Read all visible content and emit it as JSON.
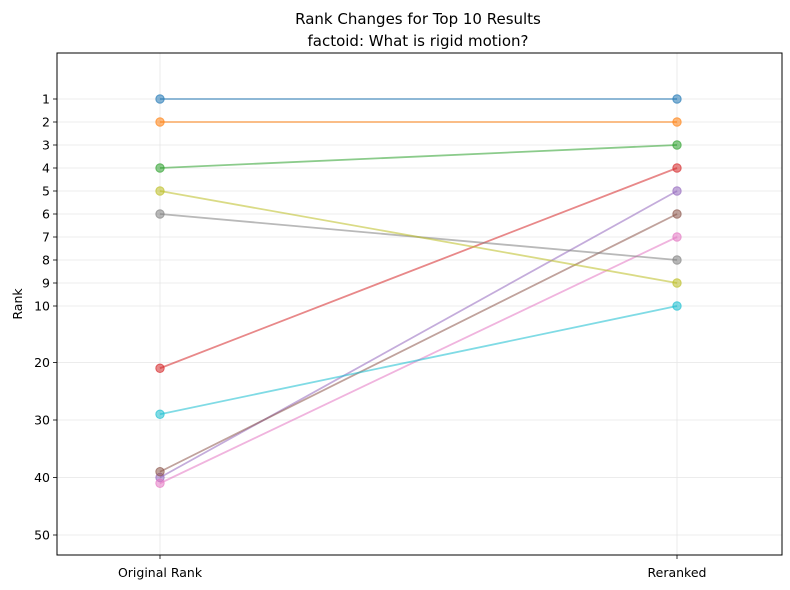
{
  "chart_data": {
    "type": "line",
    "title": "Rank Changes for Top 10 Results",
    "subtitle": "factoid: What is rigid motion?",
    "ylabel": "Rank",
    "x_categories": [
      "Original Rank",
      "Reranked"
    ],
    "y_tick_labels": [
      "1",
      "2",
      "3",
      "4",
      "5",
      "6",
      "7",
      "8",
      "9",
      "10",
      "20",
      "30",
      "40",
      "50"
    ],
    "grid": true,
    "series": [
      {
        "original": 1,
        "reranked": 1,
        "color": "#1f77b4"
      },
      {
        "original": 2,
        "reranked": 2,
        "color": "#ff7f0e"
      },
      {
        "original": 4,
        "reranked": 3,
        "color": "#2ca02c"
      },
      {
        "original": 21,
        "reranked": 4,
        "color": "#d62728"
      },
      {
        "original": 40,
        "reranked": 5,
        "color": "#9467bd"
      },
      {
        "original": 39,
        "reranked": 6,
        "color": "#8c564b"
      },
      {
        "original": 41,
        "reranked": 7,
        "color": "#e377c2"
      },
      {
        "original": 6,
        "reranked": 8,
        "color": "#7f7f7f"
      },
      {
        "original": 5,
        "reranked": 9,
        "color": "#bcbd22"
      },
      {
        "original": 29,
        "reranked": 10,
        "color": "#17becf"
      }
    ]
  }
}
